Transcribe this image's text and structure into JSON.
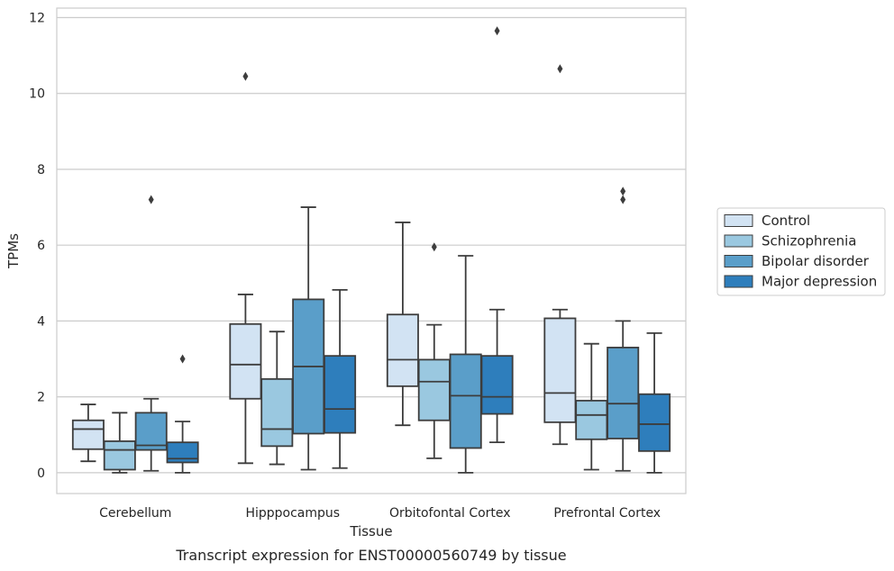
{
  "caption": "Transcript expression for ENST00000560749 by tissue",
  "chart_data": {
    "type": "box",
    "xlabel": "Tissue",
    "ylabel": "TPMs",
    "ylim": [
      -0.55,
      12.25
    ],
    "yticks": [
      0,
      2,
      4,
      6,
      8,
      10,
      12
    ],
    "grid": "y",
    "legend_placement": "center-right-outside",
    "categories": [
      "Cerebellum",
      "Hipppocampus",
      "Orbitofontal Cortex",
      "Prefrontal Cortex"
    ],
    "series": [
      {
        "name": "Control",
        "color": "#d2e3f3",
        "boxes": [
          {
            "whislo": 0.3,
            "q1": 0.62,
            "med": 1.15,
            "q3": 1.38,
            "whishi": 1.8,
            "fliers": []
          },
          {
            "whislo": 0.25,
            "q1": 1.95,
            "med": 2.85,
            "q3": 3.92,
            "whishi": 4.7,
            "fliers": [
              10.45
            ]
          },
          {
            "whislo": 1.25,
            "q1": 2.28,
            "med": 2.98,
            "q3": 4.17,
            "whishi": 6.6,
            "fliers": []
          },
          {
            "whislo": 0.75,
            "q1": 1.33,
            "med": 2.1,
            "q3": 4.07,
            "whishi": 4.3,
            "fliers": [
              10.65
            ]
          }
        ]
      },
      {
        "name": "Schizophrenia",
        "color": "#9ac8e0",
        "boxes": [
          {
            "whislo": 0.0,
            "q1": 0.08,
            "med": 0.6,
            "q3": 0.83,
            "whishi": 1.58,
            "fliers": []
          },
          {
            "whislo": 0.22,
            "q1": 0.7,
            "med": 1.15,
            "q3": 2.47,
            "whishi": 3.72,
            "fliers": []
          },
          {
            "whislo": 0.38,
            "q1": 1.38,
            "med": 2.4,
            "q3": 2.98,
            "whishi": 3.9,
            "fliers": [
              5.95
            ]
          },
          {
            "whislo": 0.08,
            "q1": 0.88,
            "med": 1.52,
            "q3": 1.9,
            "whishi": 3.4,
            "fliers": []
          }
        ]
      },
      {
        "name": "Bipolar disorder",
        "color": "#5a9ec9",
        "boxes": [
          {
            "whislo": 0.05,
            "q1": 0.6,
            "med": 0.72,
            "q3": 1.58,
            "whishi": 1.95,
            "fliers": [
              7.2
            ]
          },
          {
            "whislo": 0.08,
            "q1": 1.03,
            "med": 2.8,
            "q3": 4.57,
            "whishi": 7.0,
            "fliers": []
          },
          {
            "whislo": 0.0,
            "q1": 0.65,
            "med": 2.03,
            "q3": 3.12,
            "whishi": 5.72,
            "fliers": []
          },
          {
            "whislo": 0.05,
            "q1": 0.9,
            "med": 1.82,
            "q3": 3.3,
            "whishi": 4.0,
            "fliers": [
              7.2,
              7.42
            ]
          }
        ]
      },
      {
        "name": "Major depression",
        "color": "#2e7ebc",
        "boxes": [
          {
            "whislo": 0.0,
            "q1": 0.27,
            "med": 0.37,
            "q3": 0.8,
            "whishi": 1.35,
            "fliers": [
              3.0
            ]
          },
          {
            "whislo": 0.12,
            "q1": 1.05,
            "med": 1.68,
            "q3": 3.08,
            "whishi": 4.82,
            "fliers": []
          },
          {
            "whislo": 0.8,
            "q1": 1.55,
            "med": 2.0,
            "q3": 3.08,
            "whishi": 4.3,
            "fliers": [
              11.65
            ]
          },
          {
            "whislo": 0.0,
            "q1": 0.57,
            "med": 1.28,
            "q3": 2.07,
            "whishi": 3.68,
            "fliers": []
          }
        ]
      }
    ]
  }
}
